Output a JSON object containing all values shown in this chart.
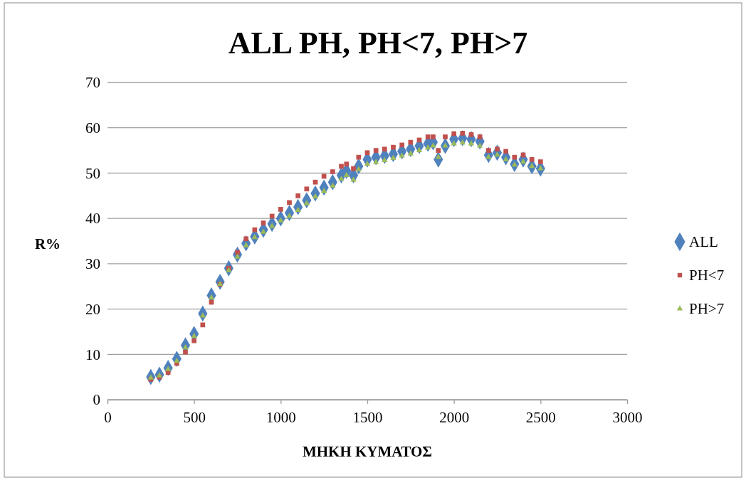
{
  "chart_data": {
    "type": "scatter",
    "title": "ALL PH, PH<7, PH>7",
    "xlabel": "ΜΗΚΗ ΚΥΜΑΤΟΣ",
    "ylabel": "R%",
    "x": [
      250,
      300,
      350,
      400,
      450,
      500,
      550,
      600,
      650,
      700,
      750,
      800,
      850,
      900,
      950,
      1000,
      1050,
      1100,
      1150,
      1200,
      1250,
      1300,
      1350,
      1380,
      1420,
      1450,
      1500,
      1550,
      1600,
      1650,
      1700,
      1750,
      1800,
      1850,
      1880,
      1910,
      1950,
      2000,
      2050,
      2100,
      2150,
      2200,
      2250,
      2300,
      2350,
      2400,
      2450,
      2500
    ],
    "series": [
      {
        "name": "ALL",
        "color": "#4f81bd",
        "marker": "diamond",
        "values": [
          5,
          5.5,
          7,
          9,
          12,
          14.5,
          19,
          23,
          26,
          29,
          32,
          34.5,
          36,
          37.5,
          38.8,
          40,
          41.2,
          42.5,
          44,
          45.5,
          46.8,
          48,
          49.5,
          50.5,
          49.5,
          51.5,
          53,
          53.5,
          53.8,
          54.2,
          54.8,
          55.3,
          56,
          56.5,
          56.8,
          53,
          56,
          57.5,
          57.7,
          57.5,
          57,
          54,
          54.5,
          53.5,
          52,
          53,
          51.5,
          51
        ]
      },
      {
        "name": "PH<7",
        "color": "#c0504d",
        "marker": "square",
        "values": [
          4.5,
          5,
          6,
          8,
          10.5,
          13,
          16.5,
          21.5,
          25.5,
          29,
          32.5,
          35.5,
          37.5,
          39,
          40.5,
          42,
          43.5,
          45,
          46.5,
          48,
          49.3,
          50.3,
          51.5,
          52,
          51,
          53.5,
          54.5,
          55,
          55.3,
          55.7,
          56.2,
          56.8,
          57.3,
          58,
          58,
          55,
          58,
          58.7,
          58.8,
          58.5,
          58,
          55,
          55.3,
          54.8,
          53.5,
          54,
          53,
          52.5
        ]
      },
      {
        "name": "PH>7",
        "color": "#9bbb59",
        "marker": "triangle",
        "values": [
          4.8,
          5.3,
          6.7,
          8.5,
          11.5,
          14,
          18.5,
          22.5,
          25.5,
          28.5,
          31.5,
          34,
          35.8,
          37,
          38.3,
          39.5,
          40.5,
          41.8,
          43.3,
          44.8,
          46,
          47.2,
          48.7,
          49.5,
          48.5,
          50.8,
          52,
          52.4,
          52.8,
          53.3,
          53.8,
          54.3,
          55,
          55.6,
          56,
          53.5,
          56,
          56.5,
          56.7,
          56.5,
          56,
          53.5,
          54,
          53,
          51.8,
          52.5,
          51.5,
          51
        ]
      }
    ],
    "xlim": [
      0,
      3000
    ],
    "xticks": [
      0,
      500,
      1000,
      1500,
      2000,
      2500,
      3000
    ],
    "ylim": [
      0,
      70
    ],
    "yticks": [
      0,
      10,
      20,
      30,
      40,
      50,
      60,
      70
    ],
    "grid": "y",
    "legend": "right"
  }
}
